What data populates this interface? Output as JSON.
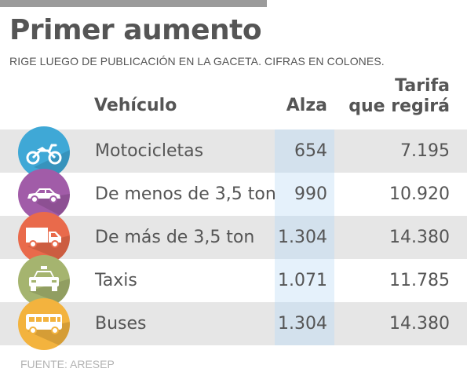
{
  "header": {
    "title": "Primer aumento",
    "subtitle": "RIGE LUEGO DE PUBLICACIÓN EN LA GACETA. CIFRAS EN COLONES."
  },
  "columns": {
    "vehiculo": "Vehículo",
    "alza": "Alza",
    "tarifa_line1": "Tarifa",
    "tarifa_line2": "que regirá"
  },
  "rows": [
    {
      "vehiculo": "Motocicletas",
      "alza": "654",
      "tarifa": "7.195",
      "icon": "motorcycle-icon",
      "color": "#3fa8d6"
    },
    {
      "vehiculo": "De menos de 3,5 ton",
      "alza": "990",
      "tarifa": "10.920",
      "icon": "car-icon",
      "color": "#a15ca8"
    },
    {
      "vehiculo": "De más de 3,5  ton",
      "alza": "1.304",
      "tarifa": "14.380",
      "icon": "truck-icon",
      "color": "#e96a4b"
    },
    {
      "vehiculo": "Taxis",
      "alza": "1.071",
      "tarifa": "11.785",
      "icon": "taxi-icon",
      "color": "#a5b46f"
    },
    {
      "vehiculo": "Buses",
      "alza": "1.304",
      "tarifa": "14.380",
      "icon": "bus-icon",
      "color": "#f3b33e"
    }
  ],
  "footer": {
    "source": "FUENTE: ARESEP"
  },
  "colors": {
    "row_shade": "#e6e6e6",
    "alza_highlight": "#d6e4f0",
    "text": "#555555"
  }
}
